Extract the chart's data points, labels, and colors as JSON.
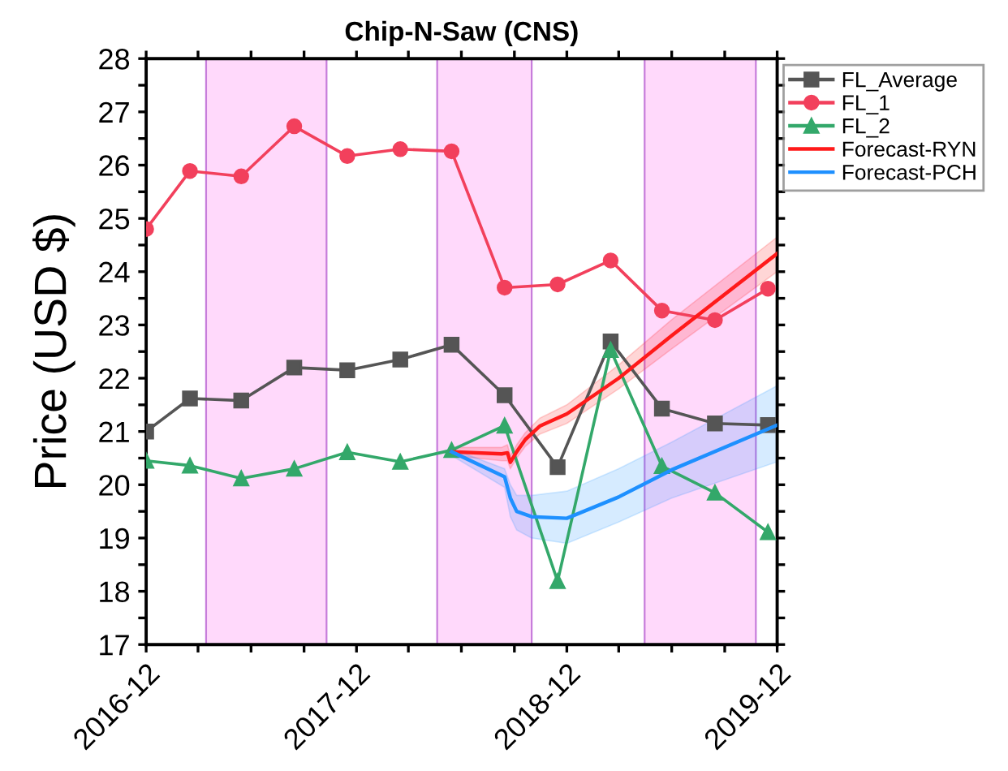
{
  "chart_data": {
    "type": "line",
    "title": "Chip-N-Saw (CNS)",
    "ylabel": "Price (USD $)",
    "xlim": [
      "2016-12",
      "2019-12"
    ],
    "xticks": [
      {
        "value": "2016-12",
        "label": "2016-12"
      },
      {
        "value": "2017-03",
        "label": null
      },
      {
        "value": "2017-06",
        "label": null
      },
      {
        "value": "2017-09",
        "label": null
      },
      {
        "value": "2017-12",
        "label": "2017-12"
      },
      {
        "value": "2018-03",
        "label": null
      },
      {
        "value": "2018-06",
        "label": null
      },
      {
        "value": "2018-09",
        "label": null
      },
      {
        "value": "2018-12",
        "label": "2018-12"
      },
      {
        "value": "2019-03",
        "label": null
      },
      {
        "value": "2019-06",
        "label": null
      },
      {
        "value": "2019-09",
        "label": null
      },
      {
        "value": "2019-12",
        "label": "2019-12"
      }
    ],
    "ylim": [
      17,
      28
    ],
    "yticks": [
      17,
      {
        "value": 17.5,
        "label": null
      },
      18,
      {
        "value": 18.5,
        "label": null
      },
      19,
      {
        "value": 19.5,
        "label": null
      },
      20,
      {
        "value": 20.5,
        "label": null
      },
      21,
      {
        "value": 21.5,
        "label": null
      },
      22,
      {
        "value": 22.5,
        "label": null
      },
      23,
      {
        "value": 23.5,
        "label": null
      },
      24,
      {
        "value": 24.5,
        "label": null
      },
      25,
      {
        "value": 25.5,
        "label": null
      },
      26,
      {
        "value": 26.5,
        "label": null
      },
      27,
      {
        "value": 27.5,
        "label": null
      },
      28
    ],
    "grid": false,
    "legend": "top right",
    "line_style": "solid",
    "bands": [
      {
        "axis": "x",
        "from": "2017-03-15",
        "to": "2017-10-10",
        "color": "#ffd9fb"
      },
      {
        "axis": "x",
        "from": "2018-04-20",
        "to": "2018-10-01",
        "color": "#ffd9fb"
      },
      {
        "axis": "x",
        "from": "2019-04-15",
        "to": "2019-10-25",
        "color": "#ffd9fb"
      }
    ],
    "series": [
      {
        "name": "FL_Average",
        "color": "#555555",
        "marker": "square",
        "x": [
          "2016-12-01",
          "2017-02-15",
          "2017-05-15",
          "2017-08-15",
          "2017-11-15",
          "2018-02-15",
          "2018-05-15",
          "2018-08-15",
          "2018-11-15",
          "2019-02-15",
          "2019-05-15",
          "2019-08-15",
          "2019-11-15"
        ],
        "values": [
          21.0,
          21.62,
          21.58,
          22.2,
          22.15,
          22.35,
          22.63,
          21.68,
          20.33,
          22.69,
          21.43,
          21.15,
          21.12
        ]
      },
      {
        "name": "FL_1",
        "color": "#f2405c",
        "marker": "circle",
        "x": [
          "2016-12-01",
          "2017-02-15",
          "2017-05-15",
          "2017-08-15",
          "2017-11-15",
          "2018-02-15",
          "2018-05-15",
          "2018-08-15",
          "2018-11-15",
          "2019-02-15",
          "2019-05-15",
          "2019-08-15",
          "2019-11-15"
        ],
        "values": [
          24.8,
          25.89,
          25.79,
          26.73,
          26.17,
          26.3,
          26.26,
          23.7,
          23.76,
          24.21,
          23.27,
          23.09,
          23.68
        ]
      },
      {
        "name": "FL_2",
        "color": "#33a86a",
        "marker": "triangle",
        "x": [
          "2016-12-01",
          "2017-02-15",
          "2017-05-15",
          "2017-08-15",
          "2017-11-15",
          "2018-02-15",
          "2018-05-15",
          "2018-08-15",
          "2018-11-15",
          "2019-02-15",
          "2019-05-15",
          "2019-08-15",
          "2019-11-15"
        ],
        "values": [
          20.45,
          20.36,
          20.12,
          20.3,
          20.61,
          20.43,
          20.65,
          21.11,
          18.19,
          22.53,
          20.35,
          19.85,
          19.11
        ]
      },
      {
        "name": "Forecast-RYN",
        "color": "#ff1a1a",
        "marker": "none",
        "x": [
          "2018-05-15",
          "2018-08-10",
          "2018-08-20",
          "2018-08-25",
          "2018-09-05",
          "2018-09-20",
          "2018-10-15",
          "2018-12-01",
          "2019-03-01",
          "2019-06-01",
          "2019-12-01"
        ],
        "values": [
          20.62,
          20.58,
          20.6,
          20.42,
          20.62,
          20.85,
          21.1,
          21.33,
          22.0,
          22.8,
          24.34
        ],
        "lower": [
          20.55,
          20.45,
          20.45,
          20.3,
          20.5,
          20.72,
          20.95,
          21.15,
          21.8,
          22.55,
          24.0
        ],
        "upper": [
          20.7,
          20.7,
          20.75,
          20.55,
          20.75,
          20.98,
          21.25,
          21.5,
          22.25,
          23.1,
          24.65
        ]
      },
      {
        "name": "Forecast-PCH",
        "color": "#1e90ff",
        "marker": "none",
        "x": [
          "2018-05-15",
          "2018-08-15",
          "2018-08-25",
          "2018-09-05",
          "2018-10-01",
          "2018-12-01",
          "2019-03-01",
          "2019-06-01",
          "2019-12-01"
        ],
        "values": [
          20.62,
          20.15,
          19.75,
          19.5,
          19.4,
          19.37,
          19.77,
          20.28,
          21.12
        ],
        "lower": [
          20.55,
          19.95,
          19.4,
          19.15,
          19.0,
          18.9,
          19.3,
          19.75,
          20.43
        ],
        "upper": [
          20.68,
          20.3,
          20.0,
          19.8,
          19.8,
          19.88,
          20.3,
          20.8,
          21.86
        ]
      }
    ]
  }
}
